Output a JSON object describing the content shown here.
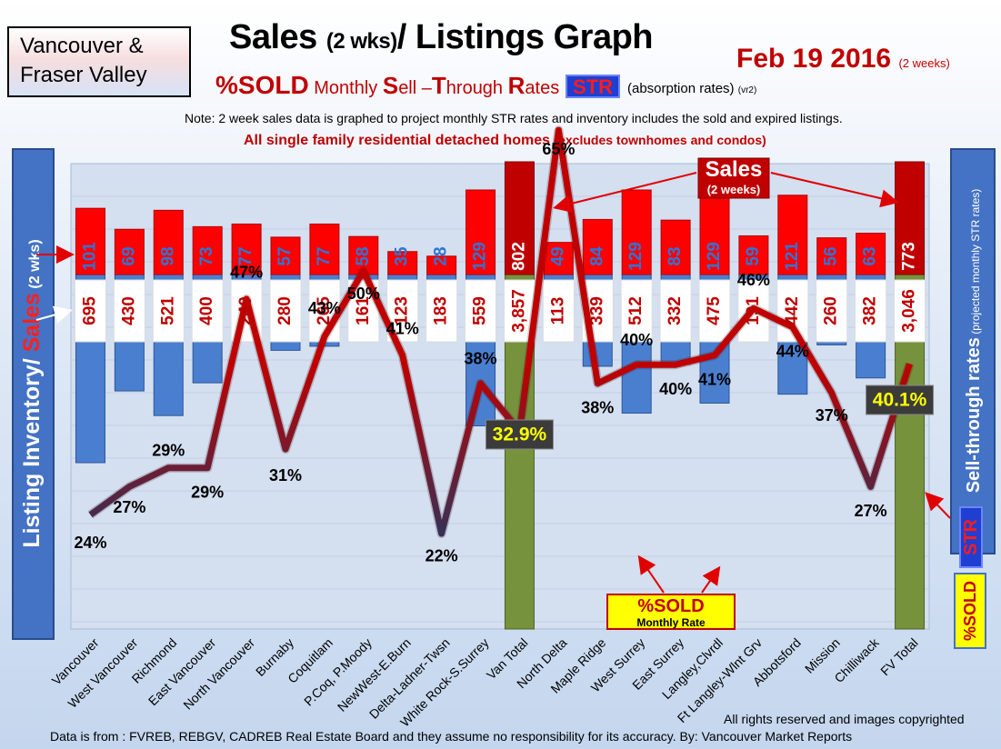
{
  "header": {
    "region_line1": "Vancouver &",
    "region_line2": "Fraser Valley",
    "title_a": "Sales ",
    "title_b": "(2 wks)",
    "title_c": "/ Listings Graph",
    "date": "Feb 19 2016",
    "date_note": "(2 weeks)",
    "subtitle_a": "%SOLD",
    "subtitle_b": " Monthly ",
    "subtitle_c": "S",
    "subtitle_d": "ell –",
    "subtitle_e": "T",
    "subtitle_f": "hrough ",
    "subtitle_g": "R",
    "subtitle_h": "ates",
    "str_badge": "STR",
    "absorption": "(absorption rates)",
    "version": "(vr2)",
    "note": "Note: 2 week sales data is graphed to project monthly STR rates and inventory includes the sold and expired listings.",
    "scope_a": "All single family residential detached homes ",
    "scope_b": "(excludes townhomes and condos)"
  },
  "axes": {
    "left_a": "Listing Inventory/ ",
    "left_b": "Sales",
    "left_c": " (2 wks)",
    "right_a": "Sell-through rates",
    "right_b": "  (projected monthly STR rates)",
    "str_vertical": "STR",
    "sold_vertical": "%SOLD"
  },
  "callouts": {
    "sales_title": "Sales",
    "sales_sub": "(2 weeks)",
    "sold_title": "%SOLD",
    "sold_sub": "Monthly Rate"
  },
  "footer": {
    "copyright": "All rights reserved and  images copyrighted",
    "source": "Data is  from : FVREB, REBGV, CADREB Real Estate Board and they assume  no responsibility  for its accuracy. By: Vancouver Market Reports"
  },
  "colors": {
    "sales_bar": "#ff0000",
    "total_sales_bar": "#c00000",
    "inventory_bar": "#4a7fd0",
    "total_inventory_bar": "#76923c",
    "line_high": "#c00000",
    "line_low": "#1f3864",
    "highlight": "#ffff00"
  },
  "chart_data": {
    "type": "bar",
    "categories": [
      "Vancouver",
      "West Vancouver",
      "Richmond",
      "East Vancouver",
      "North Vancouver",
      "Burnaby",
      "Coquitlam",
      "P.Coq, P.Moody",
      "NewWest-E.Burn",
      "Delta-Ladner-Twsn",
      "White Rock-S.Surrey",
      "Van Total",
      "North Delta",
      "Maple Ridge",
      "West Surrey",
      "East Surrey",
      "Langley,Clvrdl",
      "Ft Langley-Wlnt Grv",
      "Abbotsford",
      "Mission",
      "Chilliwack",
      "FV Total"
    ],
    "series": [
      {
        "name": "Sales",
        "unit": "(2 weeks)",
        "values": [
          101,
          69,
          98,
          73,
          77,
          57,
          77,
          58,
          35,
          28,
          129,
          802,
          49,
          84,
          129,
          83,
          129,
          59,
          121,
          56,
          63,
          773
        ]
      },
      {
        "name": "Listing Inventory",
        "values": [
          695,
          430,
          521,
          400,
          240,
          280,
          265,
          161,
          123,
          183,
          559,
          3857,
          113,
          339,
          512,
          332,
          475,
          191,
          442,
          260,
          382,
          3046
        ]
      },
      {
        "name": "%SOLD",
        "values": [
          24,
          27,
          29,
          29,
          47,
          31,
          43,
          50,
          41,
          22,
          38,
          32.9,
          65,
          38,
          40,
          40,
          41,
          46,
          44,
          37,
          27,
          40.1
        ]
      }
    ],
    "inventory_labels": [
      "695",
      "430",
      "521",
      "400",
      "240",
      "280",
      "265",
      "161",
      "123",
      "183",
      "559",
      "3,857",
      "113",
      "339",
      "512",
      "332",
      "475",
      "191",
      "442",
      "260",
      "382",
      "3,046"
    ],
    "percent_labels": [
      "24%",
      "27%",
      "29%",
      "29%",
      "47%",
      "31%",
      "43%",
      "50%",
      "41%",
      "22%",
      "38%",
      "32.9%",
      "65%",
      "38%",
      "40%",
      "40%",
      "41%",
      "46%",
      "44%",
      "37%",
      "27%",
      "40.1%"
    ],
    "totals": [
      "Van Total",
      "FV Total"
    ]
  }
}
